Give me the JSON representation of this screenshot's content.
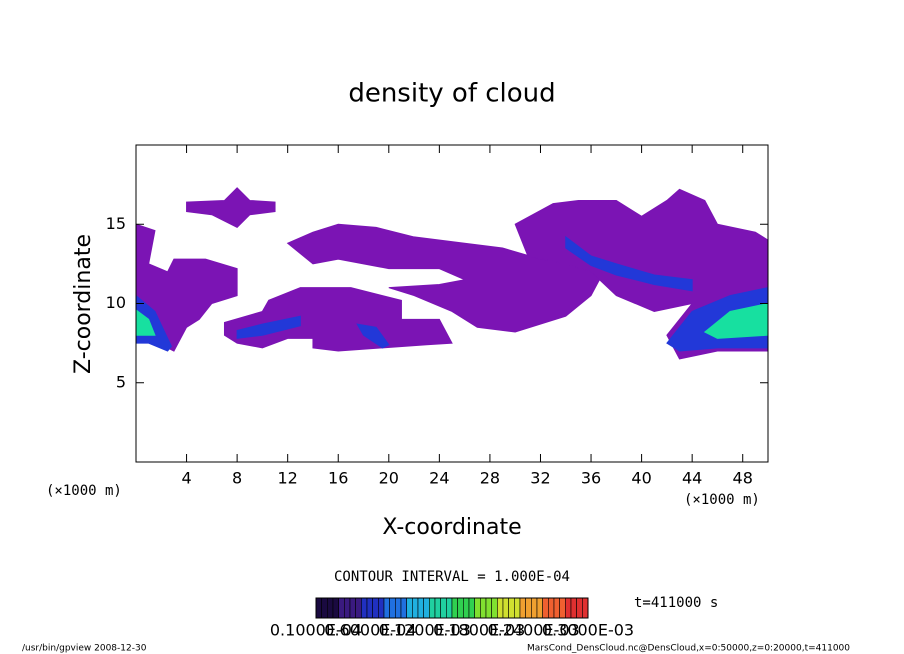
{
  "chart_data": {
    "type": "contour",
    "title": "density of cloud",
    "x_label": "X-coordinate",
    "y_label": "Z-coordinate",
    "x_unit_left": "(×1000 m)",
    "x_unit_right": "(×1000 m)",
    "xlim": [
      0,
      50
    ],
    "ylim": [
      0,
      20
    ],
    "xticks": [
      4,
      8,
      12,
      16,
      20,
      24,
      28,
      32,
      36,
      40,
      44,
      48
    ],
    "yticks": [
      5,
      10,
      15
    ],
    "fields": [
      {
        "color": "#7b14b4",
        "polygons": [
          {
            "x": [
              0,
              1.5,
              1,
              2.5,
              3,
              5.5,
              8,
              8,
              6,
              5,
              4,
              3,
              2.5,
              1,
              0
            ],
            "z": [
              15,
              14.6,
              12.5,
              12,
              12.8,
              12.8,
              12.2,
              10.5,
              10,
              9,
              8.5,
              7,
              7.2,
              9.5,
              9
            ]
          },
          {
            "x": [
              4,
              4,
              7,
              8,
              9,
              11,
              11,
              9,
              8,
              6
            ],
            "z": [
              15.8,
              16.4,
              16.5,
              17.3,
              16.5,
              16.4,
              15.8,
              15.6,
              14.8,
              15.6
            ]
          },
          {
            "x": [
              7,
              10,
              10.5,
              13,
              17,
              21,
              21,
              24,
              25,
              23,
              16,
              14,
              14,
              12,
              10,
              8,
              7
            ],
            "z": [
              8.8,
              9.5,
              10.2,
              11,
              11,
              10.2,
              9,
              9,
              7.5,
              7.4,
              7,
              7.2,
              7.8,
              7.8,
              7.2,
              7.5,
              8
            ]
          },
          {
            "x": [
              12,
              14,
              16,
              19,
              22,
              26,
              29,
              32,
              35,
              37,
              36,
              34,
              30,
              27,
              25,
              22,
              20,
              24,
              26,
              24,
              20,
              16,
              14
            ],
            "z": [
              13.8,
              14.5,
              15,
              14.8,
              14.2,
              13.8,
              13.5,
              12.8,
              12.5,
              12,
              10.5,
              9.2,
              8.2,
              8.5,
              9.5,
              10.5,
              11,
              11.2,
              11.5,
              12.2,
              12.2,
              12.8,
              12.5
            ]
          },
          {
            "x": [
              30,
              33,
              35,
              38,
              40,
              42,
              43,
              45,
              46,
              49,
              50,
              50,
              46,
              43,
              42,
              44,
              41,
              38,
              36,
              34,
              31
            ],
            "z": [
              15,
              16.3,
              16.5,
              16.5,
              15.5,
              16.5,
              17.2,
              16.5,
              15,
              14.5,
              14,
              7,
              7,
              6.5,
              8,
              10,
              9.5,
              10.5,
              12,
              12.5,
              13
            ]
          }
        ]
      },
      {
        "color": "#2238d8",
        "polygons": [
          {
            "x": [
              0,
              1.5,
              2.8,
              2.5,
              1,
              0
            ],
            "z": [
              10.5,
              9.5,
              7.3,
              7,
              7.5,
              7.5
            ]
          },
          {
            "x": [
              42,
              44,
              47,
              50,
              50,
              46,
              43
            ],
            "z": [
              7.5,
              9.5,
              10.5,
              11,
              7.2,
              7.2,
              7
            ]
          },
          {
            "x": [
              34,
              36,
              38,
              41,
              44,
              44,
              41,
              38,
              36,
              34
            ],
            "z": [
              14.2,
              13,
              12.5,
              11.8,
              11.5,
              10.8,
              11.2,
              11.8,
              12.4,
              13.5
            ]
          },
          {
            "x": [
              17.5,
              19,
              20,
              19.5,
              18
            ],
            "z": [
              8.7,
              8.5,
              7.4,
              7.2,
              8
            ]
          },
          {
            "x": [
              8,
              10,
              13,
              13,
              10,
              8
            ],
            "z": [
              8.3,
              8.7,
              9.2,
              8.6,
              8,
              7.8
            ]
          }
        ]
      },
      {
        "color": "#17e0a0",
        "polygons": [
          {
            "x": [
              0,
              1,
              1.5,
              0
            ],
            "z": [
              9.6,
              9,
              8,
              8
            ]
          },
          {
            "x": [
              45,
              47,
              50,
              50,
              46
            ],
            "z": [
              8.2,
              9.5,
              10,
              8,
              7.8
            ]
          }
        ]
      }
    ],
    "contour_interval": "CONTOUR INTERVAL = 1.000E-04",
    "time_label": "t=411000 s",
    "colorbar_colors": [
      "#1a0a40",
      "#3a1a80",
      "#2030c0",
      "#2070e0",
      "#20b0e0",
      "#20d0a0",
      "#30d050",
      "#80e030",
      "#d0e030",
      "#f0a030",
      "#f06030",
      "#e03030"
    ],
    "colorbar_labels": [
      "0.1000E-04",
      "0.6000E-04",
      "0.1200E-03",
      "0.1800E-03",
      "0.2400E-03",
      "0.3000E-03"
    ],
    "footer_left": "/usr/bin/gpview  2008-12-30",
    "footer_right": "MarsCond_DensCloud.nc@DensCloud,x=0:50000,z=0:20000,t=411000"
  }
}
